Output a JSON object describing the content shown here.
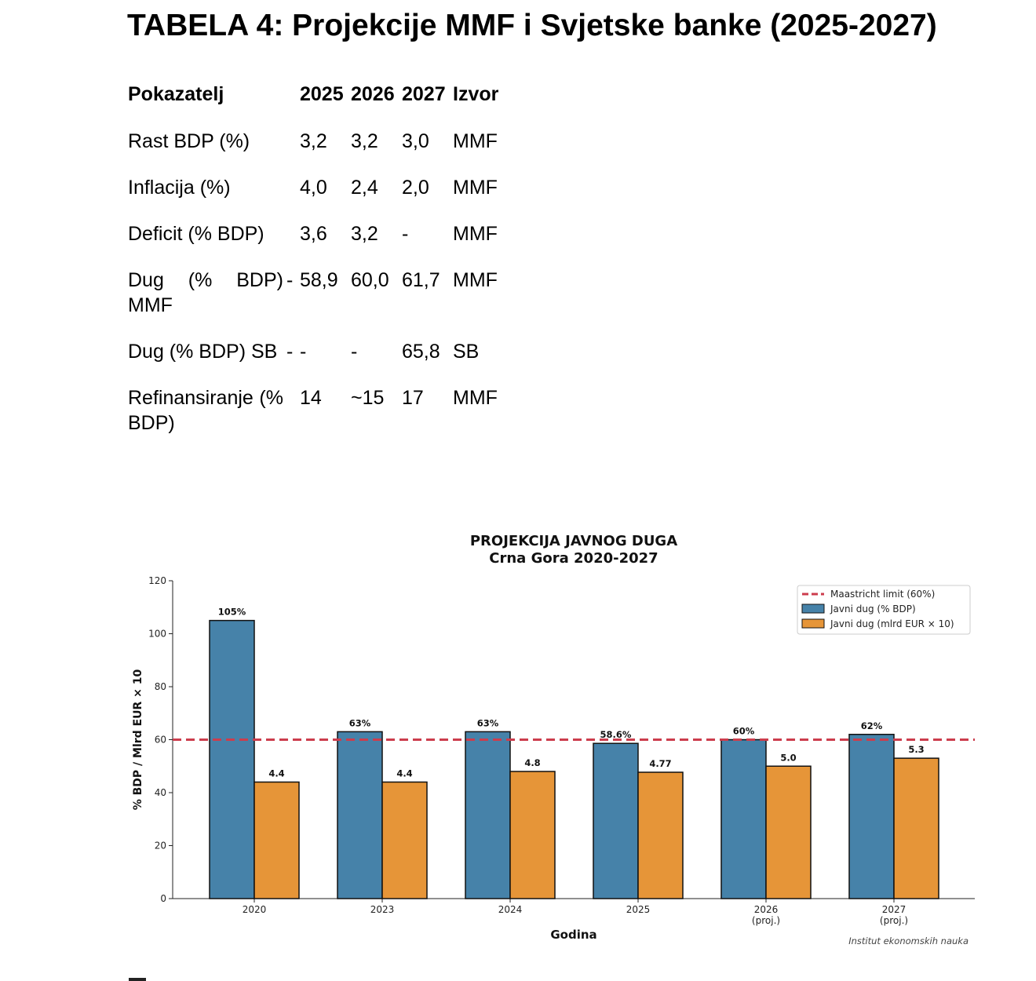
{
  "document": {
    "title": "TABELA 4: Projekcije MMF i Svjetske banke (2025-2027)"
  },
  "table": {
    "headers": [
      "Pokazatelj",
      "2025",
      "2026",
      "2027",
      "Izvor"
    ],
    "rows": [
      {
        "label": "Rast BDP (%)",
        "dash": "",
        "y2025": "3,2",
        "y2026": "3,2",
        "y2027": "3,0",
        "source": "MMF"
      },
      {
        "label": "Inflacija (%)",
        "dash": "",
        "y2025": "4,0",
        "y2026": "2,4",
        "y2027": "2,0",
        "source": "MMF"
      },
      {
        "label": "Deficit (% BDP)",
        "dash": "",
        "y2025": "3,6",
        "y2026": "3,2",
        "y2027": "-",
        "source": "MMF"
      },
      {
        "label": "Dug (% BDP) MMF",
        "dash": "-",
        "y2025": "58,9",
        "y2026": "60,0",
        "y2027": "61,7",
        "source": "MMF"
      },
      {
        "label": "Dug (% BDP) SB",
        "dash": "-",
        "y2025": "-",
        "y2026": "-",
        "y2027": "65,8",
        "source": "SB"
      },
      {
        "label": "Refinansiranje (% BDP)",
        "dash": "",
        "y2025": "14",
        "y2026": "~15",
        "y2027": "17",
        "source": "MMF"
      }
    ]
  },
  "chart_data": {
    "type": "bar",
    "title": "PROJEKCIJA JAVNOG DUGA",
    "subtitle": "Crna Gora 2020-2027",
    "xlabel": "Godina",
    "ylabel": "% BDP / Mlrd EUR × 10",
    "ylim": [
      0,
      120
    ],
    "yticks": [
      0,
      20,
      40,
      60,
      80,
      100,
      120
    ],
    "categories": [
      "2020",
      "2023",
      "2024",
      "2025",
      "2026\n(proj.)",
      "2027\n(proj.)"
    ],
    "series": [
      {
        "name": "Javni dug (% BDP)",
        "color": "#4682a9",
        "values": [
          105,
          63,
          63,
          58.6,
          60,
          62
        ],
        "labels": [
          "105%",
          "63%",
          "63%",
          "58.6%",
          "60%",
          "62%"
        ]
      },
      {
        "name": "Javni dug (mlrd EUR × 10)",
        "color": "#e69538",
        "values": [
          44,
          44,
          48,
          47.7,
          50,
          53
        ],
        "labels": [
          "4.4",
          "4.4",
          "4.8",
          "4.77",
          "5.0",
          "5.3"
        ]
      }
    ],
    "reference_line": {
      "name": "Maastricht limit (60%)",
      "value": 60,
      "color": "#cc3d4d",
      "style": "dashed"
    },
    "legend_position": "top-right",
    "grid": false,
    "source_note": "Institut ekonomskih nauka"
  }
}
